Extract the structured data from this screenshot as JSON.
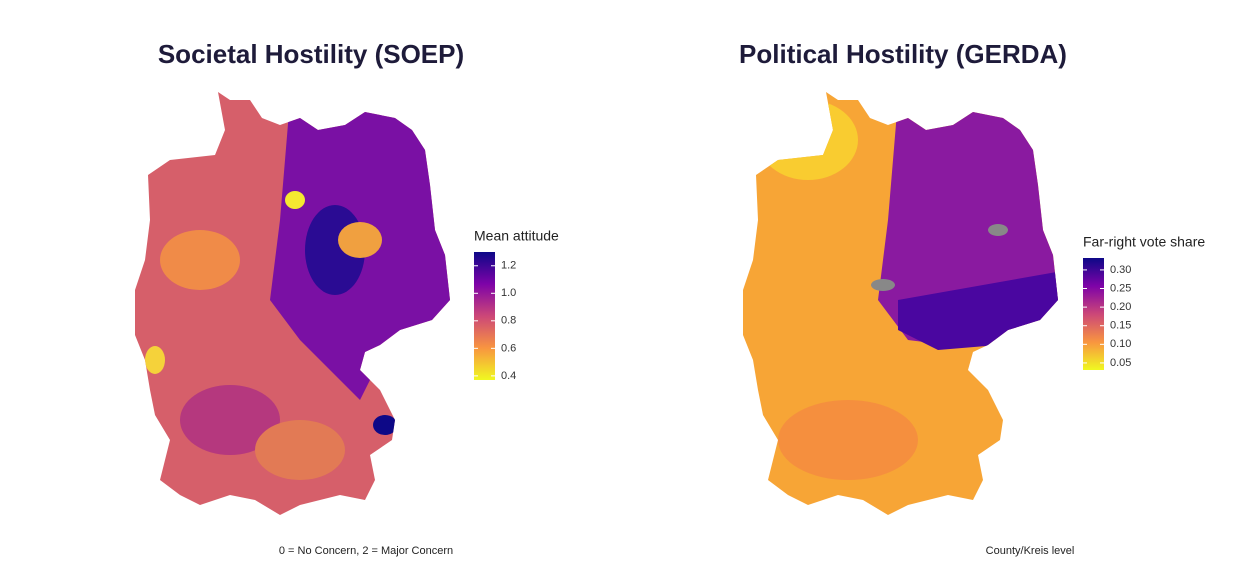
{
  "maps": [
    {
      "title": "Societal Hostility (SOEP)",
      "legend_title": "Mean attitude",
      "colorbar": {
        "lim": [
          0.37,
          1.3
        ],
        "ticks": [
          {
            "value": 1.2,
            "label": "1.2"
          },
          {
            "value": 1,
            "label": "1.0"
          },
          {
            "value": 0.8,
            "label": "0.8"
          },
          {
            "value": 0.6,
            "label": "0.6"
          },
          {
            "value": 0.4,
            "label": "0.4"
          }
        ]
      },
      "note": "0 = No Concern, 2 = Major Concern"
    },
    {
      "title": "Political Hostility (GERDA)",
      "legend_title": "Far-right vote share",
      "colorbar": {
        "lim": [
          0.031,
          0.332
        ],
        "ticks": [
          {
            "value": 0.3,
            "label": "0.30"
          },
          0.25,
          {
            "value": 0.2,
            "label": "0.20"
          },
          0.15,
          {
            "value": 0.1,
            "label": "0.10"
          },
          0.05
        ]
      },
      "note": "County/Kreis level"
    }
  ]
}
